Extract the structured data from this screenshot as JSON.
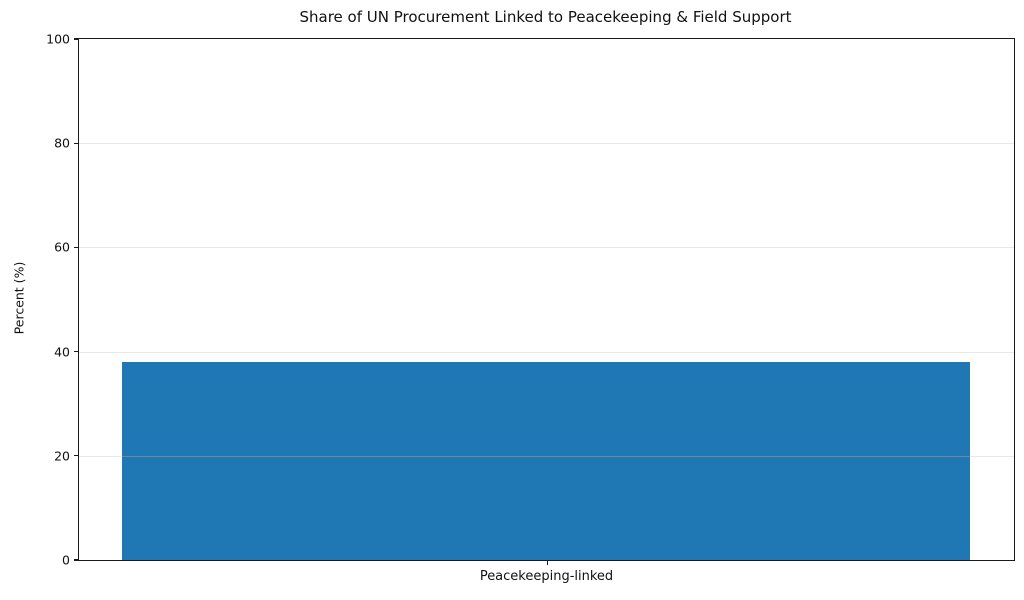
{
  "chart_data": {
    "type": "bar",
    "title": "Share of UN Procurement Linked to Peacekeeping & Field Support",
    "categories": [
      "Peacekeeping-linked"
    ],
    "values": [
      38
    ],
    "xlabel": "",
    "ylabel": "Percent (%)",
    "ylim": [
      0,
      100
    ],
    "yticks": [
      0,
      20,
      40,
      60,
      80,
      100
    ],
    "bar_color": "#1f77b4",
    "grid": "horizontal",
    "legend": "none"
  }
}
